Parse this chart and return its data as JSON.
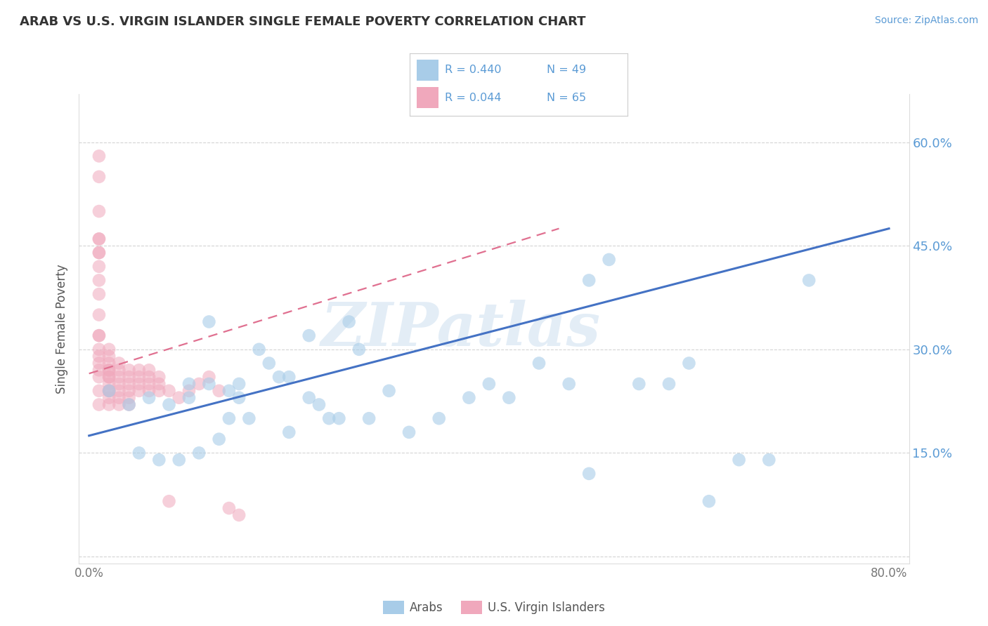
{
  "title": "ARAB VS U.S. VIRGIN ISLANDER SINGLE FEMALE POVERTY CORRELATION CHART",
  "source": "Source: ZipAtlas.com",
  "ylabel": "Single Female Poverty",
  "xlabel": "",
  "xlim": [
    -0.01,
    0.82
  ],
  "ylim": [
    -0.01,
    0.67
  ],
  "yticks": [
    0.0,
    0.15,
    0.3,
    0.45,
    0.6
  ],
  "yticklabels_right": [
    "",
    "15.0%",
    "30.0%",
    "45.0%",
    "60.0%"
  ],
  "color_arab": "#a8cce8",
  "color_vi": "#f0a8bc",
  "color_arab_line": "#4472c4",
  "color_vi_line": "#e07090",
  "watermark_text": "ZIPatlas",
  "arab_x": [
    0.02,
    0.04,
    0.05,
    0.06,
    0.07,
    0.08,
    0.09,
    0.1,
    0.1,
    0.11,
    0.12,
    0.12,
    0.13,
    0.14,
    0.14,
    0.15,
    0.15,
    0.16,
    0.17,
    0.18,
    0.19,
    0.2,
    0.2,
    0.22,
    0.22,
    0.23,
    0.24,
    0.25,
    0.26,
    0.27,
    0.28,
    0.3,
    0.32,
    0.35,
    0.38,
    0.4,
    0.42,
    0.45,
    0.48,
    0.5,
    0.5,
    0.52,
    0.55,
    0.58,
    0.6,
    0.62,
    0.65,
    0.68,
    0.72
  ],
  "arab_y": [
    0.24,
    0.22,
    0.15,
    0.23,
    0.14,
    0.22,
    0.14,
    0.23,
    0.25,
    0.15,
    0.34,
    0.25,
    0.17,
    0.2,
    0.24,
    0.23,
    0.25,
    0.2,
    0.3,
    0.28,
    0.26,
    0.18,
    0.26,
    0.23,
    0.32,
    0.22,
    0.2,
    0.2,
    0.34,
    0.3,
    0.2,
    0.24,
    0.18,
    0.2,
    0.23,
    0.25,
    0.23,
    0.28,
    0.25,
    0.12,
    0.4,
    0.43,
    0.25,
    0.25,
    0.28,
    0.08,
    0.14,
    0.14,
    0.4
  ],
  "vi_x": [
    0.01,
    0.01,
    0.01,
    0.01,
    0.01,
    0.01,
    0.01,
    0.01,
    0.01,
    0.01,
    0.01,
    0.01,
    0.01,
    0.01,
    0.01,
    0.01,
    0.01,
    0.01,
    0.01,
    0.01,
    0.02,
    0.02,
    0.02,
    0.02,
    0.02,
    0.02,
    0.02,
    0.02,
    0.02,
    0.02,
    0.02,
    0.02,
    0.03,
    0.03,
    0.03,
    0.03,
    0.03,
    0.03,
    0.03,
    0.04,
    0.04,
    0.04,
    0.04,
    0.04,
    0.04,
    0.05,
    0.05,
    0.05,
    0.05,
    0.06,
    0.06,
    0.06,
    0.06,
    0.07,
    0.07,
    0.07,
    0.08,
    0.08,
    0.09,
    0.1,
    0.11,
    0.12,
    0.13,
    0.14,
    0.15
  ],
  "vi_y": [
    0.27,
    0.29,
    0.32,
    0.35,
    0.38,
    0.4,
    0.44,
    0.46,
    0.5,
    0.55,
    0.58,
    0.22,
    0.24,
    0.26,
    0.28,
    0.3,
    0.32,
    0.42,
    0.44,
    0.46,
    0.24,
    0.26,
    0.27,
    0.28,
    0.29,
    0.3,
    0.22,
    0.23,
    0.24,
    0.25,
    0.26,
    0.27,
    0.23,
    0.25,
    0.26,
    0.27,
    0.28,
    0.22,
    0.24,
    0.24,
    0.25,
    0.26,
    0.27,
    0.22,
    0.23,
    0.24,
    0.25,
    0.26,
    0.27,
    0.24,
    0.25,
    0.26,
    0.27,
    0.24,
    0.25,
    0.26,
    0.08,
    0.24,
    0.23,
    0.24,
    0.25,
    0.26,
    0.24,
    0.07,
    0.06
  ],
  "arab_line_x": [
    0.0,
    0.8
  ],
  "arab_line_y": [
    0.175,
    0.475
  ],
  "vi_line_x": [
    0.0,
    0.47
  ],
  "vi_line_y": [
    0.265,
    0.475
  ],
  "background_color": "#ffffff",
  "grid_color": "#d0d0d0",
  "title_color": "#333333",
  "source_color": "#5b9bd5",
  "tick_color": "#5b9bd5",
  "legend_color": "#5b9bd5"
}
